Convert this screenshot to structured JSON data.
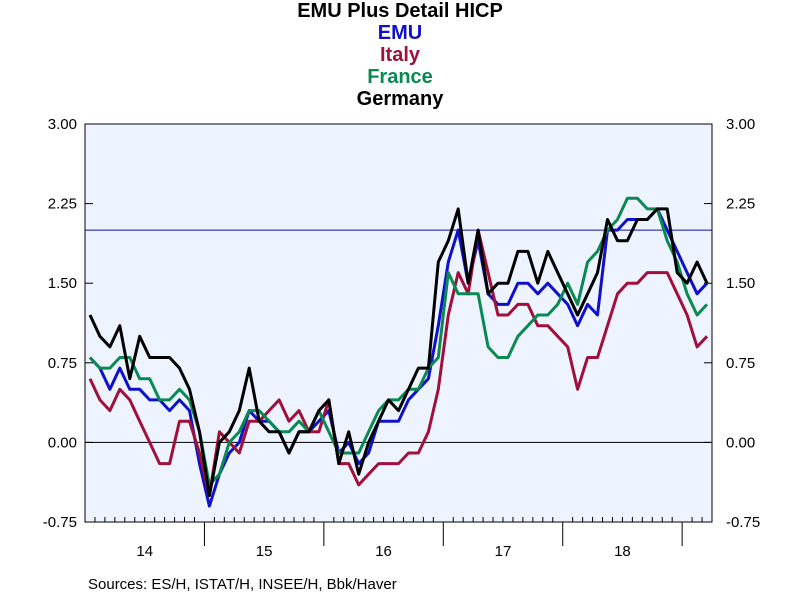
{
  "titles": {
    "main": "EMU Plus Detail HICP",
    "legend": [
      {
        "label": "EMU",
        "color": "#1010c8"
      },
      {
        "label": "Italy",
        "color": "#a0103a"
      },
      {
        "label": "France",
        "color": "#0a8a50"
      },
      {
        "label": "Germany",
        "color": "#000000"
      }
    ]
  },
  "source": "Sources:  ES/H, ISTAT/H, INSEE/H, Bbk/Haver",
  "chart_data": {
    "type": "line",
    "x_start": "2014-01",
    "x_frequency": "monthly",
    "x_tick_labels": [
      "14",
      "15",
      "16",
      "17",
      "18"
    ],
    "ylim": [
      -0.75,
      3.0
    ],
    "y_ticks": [
      "3.00",
      "2.25",
      "1.50",
      "0.75",
      "0.00",
      "-0.75"
    ],
    "reference_lines": [
      {
        "value": 2.0,
        "color": "#1010a0"
      },
      {
        "value": 0.0,
        "color": "#000000"
      }
    ],
    "plot_background": "#eef4ff",
    "series": [
      {
        "name": "EMU",
        "color": "#1010c8",
        "values": [
          0.8,
          0.7,
          0.5,
          0.7,
          0.5,
          0.5,
          0.4,
          0.4,
          0.3,
          0.4,
          0.3,
          -0.2,
          -0.6,
          -0.3,
          -0.1,
          0.0,
          0.3,
          0.2,
          0.2,
          0.1,
          -0.1,
          0.1,
          0.1,
          0.2,
          0.3,
          -0.1,
          0.0,
          -0.2,
          -0.1,
          0.2,
          0.2,
          0.2,
          0.4,
          0.5,
          0.6,
          1.1,
          1.7,
          2.0,
          1.5,
          1.9,
          1.4,
          1.3,
          1.3,
          1.5,
          1.5,
          1.4,
          1.5,
          1.4,
          1.3,
          1.1,
          1.3,
          1.2,
          2.0,
          2.0,
          2.1,
          2.1,
          2.1,
          2.2,
          2.0,
          1.8,
          1.6,
          1.4,
          1.5
        ]
      },
      {
        "name": "Italy",
        "color": "#a0103a",
        "values": [
          0.6,
          0.4,
          0.3,
          0.5,
          0.4,
          0.2,
          0.0,
          -0.2,
          -0.2,
          0.2,
          0.2,
          -0.1,
          -0.5,
          0.1,
          0.0,
          -0.1,
          0.2,
          0.2,
          0.3,
          0.4,
          0.2,
          0.3,
          0.1,
          0.1,
          0.4,
          -0.2,
          -0.2,
          -0.4,
          -0.3,
          -0.2,
          -0.2,
          -0.2,
          -0.1,
          -0.1,
          0.1,
          0.5,
          1.2,
          1.6,
          1.4,
          2.0,
          1.6,
          1.2,
          1.2,
          1.3,
          1.3,
          1.1,
          1.1,
          1.0,
          0.9,
          0.5,
          0.8,
          0.8,
          1.1,
          1.4,
          1.5,
          1.5,
          1.6,
          1.6,
          1.6,
          1.4,
          1.2,
          0.9,
          1.0
        ]
      },
      {
        "name": "France",
        "color": "#0a8a50",
        "values": [
          0.8,
          0.7,
          0.7,
          0.8,
          0.8,
          0.6,
          0.6,
          0.4,
          0.4,
          0.5,
          0.4,
          0.1,
          -0.4,
          -0.3,
          0.0,
          0.1,
          0.3,
          0.3,
          0.2,
          0.1,
          0.1,
          0.2,
          0.1,
          0.3,
          0.1,
          -0.1,
          -0.1,
          -0.1,
          0.1,
          0.3,
          0.4,
          0.4,
          0.5,
          0.5,
          0.7,
          0.8,
          1.6,
          1.4,
          1.4,
          1.4,
          0.9,
          0.8,
          0.8,
          1.0,
          1.1,
          1.2,
          1.2,
          1.3,
          1.5,
          1.3,
          1.7,
          1.8,
          2.0,
          2.1,
          2.3,
          2.3,
          2.2,
          2.2,
          1.9,
          1.7,
          1.4,
          1.2,
          1.3
        ]
      },
      {
        "name": "Germany",
        "color": "#000000",
        "values": [
          1.2,
          1.0,
          0.9,
          1.1,
          0.6,
          1.0,
          0.8,
          0.8,
          0.8,
          0.7,
          0.5,
          0.1,
          -0.5,
          0.0,
          0.1,
          0.3,
          0.7,
          0.2,
          0.1,
          0.1,
          -0.1,
          0.1,
          0.1,
          0.3,
          0.4,
          -0.2,
          0.1,
          -0.3,
          0.0,
          0.2,
          0.4,
          0.3,
          0.5,
          0.7,
          0.7,
          1.7,
          1.9,
          2.2,
          1.5,
          2.0,
          1.4,
          1.5,
          1.5,
          1.8,
          1.8,
          1.5,
          1.8,
          1.6,
          1.4,
          1.2,
          1.4,
          1.6,
          2.1,
          1.9,
          1.9,
          2.1,
          2.1,
          2.2,
          2.2,
          1.6,
          1.5,
          1.7,
          1.5
        ]
      }
    ]
  }
}
